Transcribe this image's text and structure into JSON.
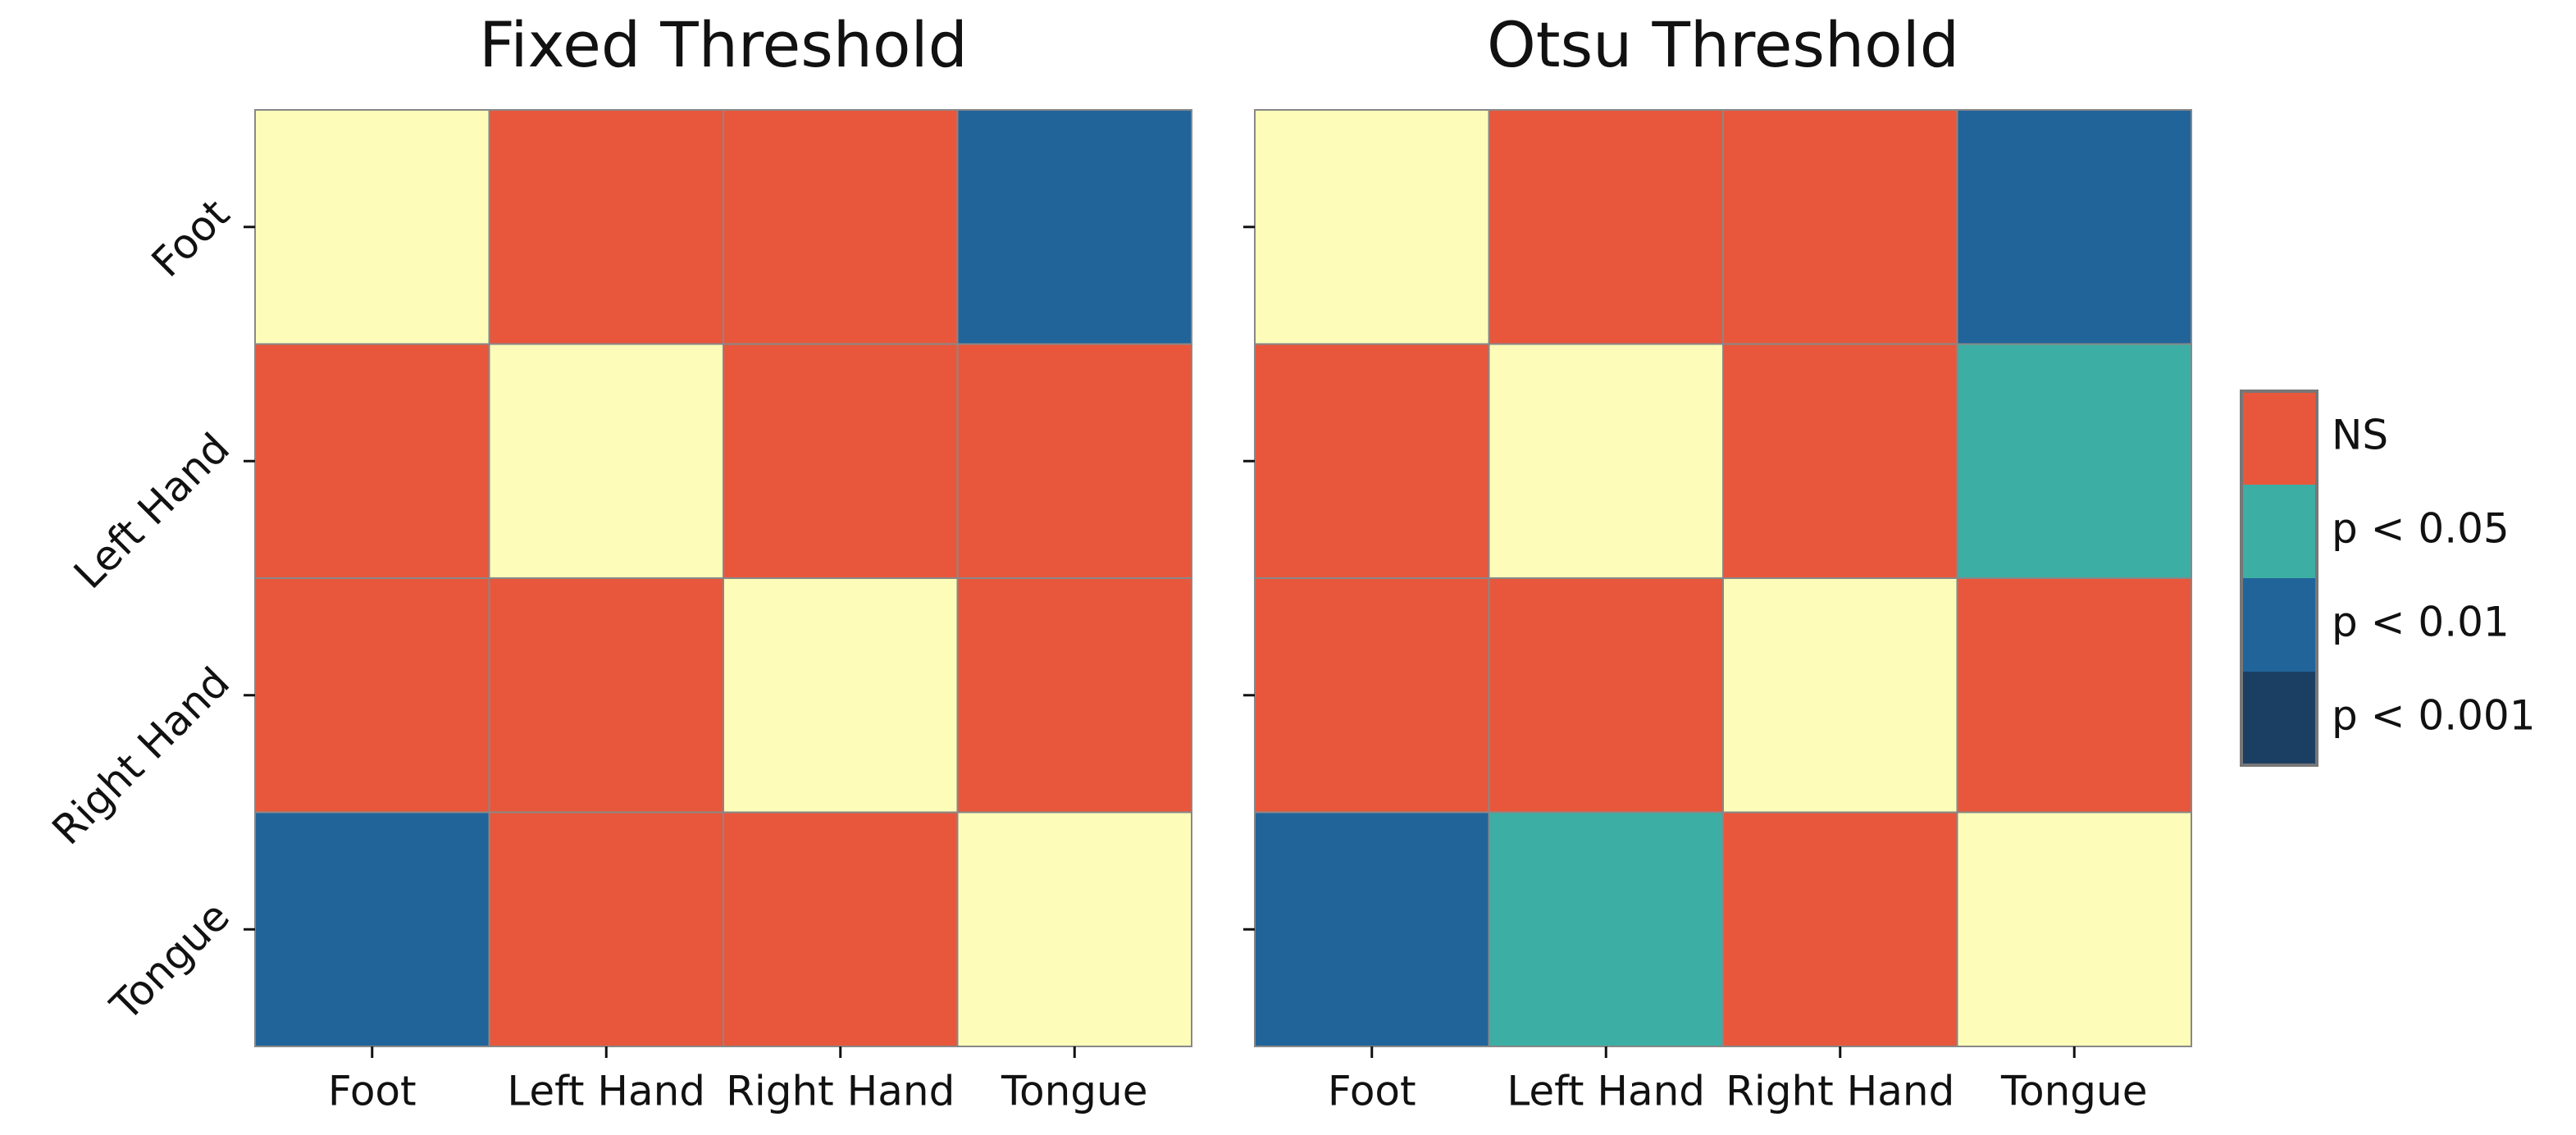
{
  "chart_data": [
    {
      "type": "heatmap",
      "title": "Fixed Threshold",
      "x_categories": [
        "Foot",
        "Left Hand",
        "Right Hand",
        "Tongue"
      ],
      "y_categories": [
        "Foot",
        "Left Hand",
        "Right Hand",
        "Tongue"
      ],
      "cells": [
        [
          null,
          "NS",
          "NS",
          "p < 0.01"
        ],
        [
          "NS",
          null,
          "NS",
          "NS"
        ],
        [
          "NS",
          "NS",
          null,
          "NS"
        ],
        [
          "p < 0.01",
          "NS",
          "NS",
          null
        ]
      ]
    },
    {
      "type": "heatmap",
      "title": "Otsu Threshold",
      "x_categories": [
        "Foot",
        "Left Hand",
        "Right Hand",
        "Tongue"
      ],
      "cells": [
        [
          null,
          "NS",
          "NS",
          "p < 0.01"
        ],
        [
          "NS",
          null,
          "NS",
          "p < 0.05"
        ],
        [
          "NS",
          "NS",
          null,
          "NS"
        ],
        [
          "p < 0.01",
          "p < 0.05",
          "NS",
          null
        ]
      ]
    }
  ],
  "legend": {
    "entries": [
      {
        "name": "NS",
        "color": "#e8573c"
      },
      {
        "name": "p < 0.05",
        "color": "#3caea3"
      },
      {
        "name": "p < 0.01",
        "color": "#21649a"
      },
      {
        "name": "p < 0.001",
        "color": "#1b3f63"
      }
    ],
    "diagonal_color": "#fdfdb9"
  }
}
